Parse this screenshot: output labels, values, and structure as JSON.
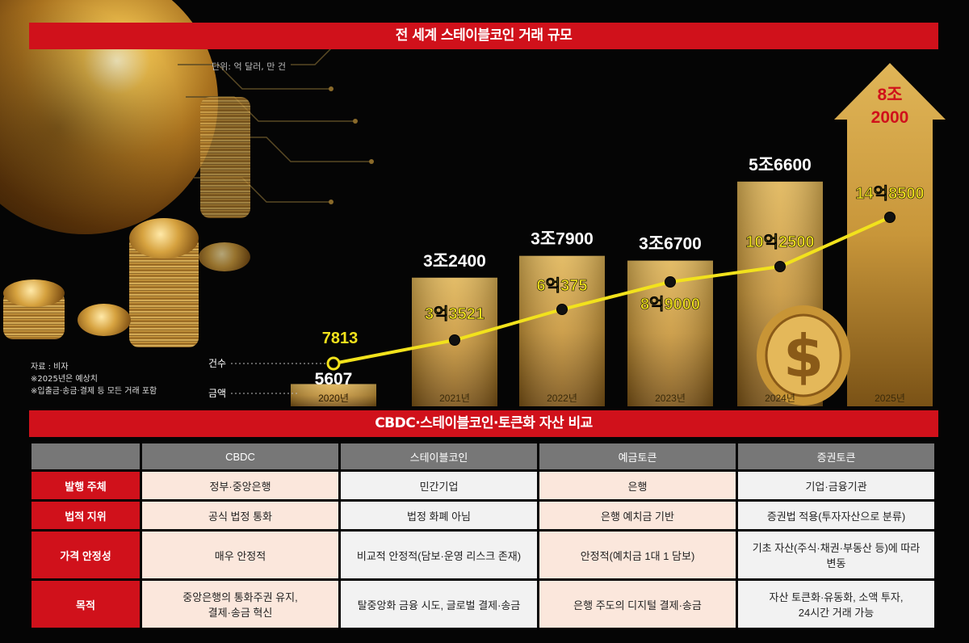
{
  "chart_title": "전 세계 스테이블코인 거래 규모",
  "unit_label": "단위: 억 달러, 만 건",
  "notes": [
    "자료 : 비자",
    "※2025년은 예상치",
    "※입출금·송금·결제 등 모든 거래 포함"
  ],
  "chart_data": {
    "type": "bar",
    "categories": [
      "2020년",
      "2021년",
      "2022년",
      "2023년",
      "2024년",
      "2025년"
    ],
    "series": [
      {
        "name": "금액",
        "type": "bar",
        "values": [
          5607,
          32400,
          37900,
          36700,
          56600,
          82000
        ],
        "labels": [
          "5607",
          "3조2400",
          "3조7900",
          "3조6700",
          "5조6600",
          "8조\n2000"
        ]
      },
      {
        "name": "건수",
        "type": "line",
        "values": [
          7813,
          33521,
          60375,
          89000,
          102500,
          148500
        ],
        "labels": [
          "7813",
          "3억3521",
          "6억375",
          "8억9000",
          "10억2500",
          "14억8500"
        ]
      }
    ],
    "projected_category": "2025년",
    "colors": {
      "bar": "#d9a94a",
      "line": "#f2e21c",
      "highlight": "#d0111b"
    }
  },
  "comparison": {
    "title": "CBDC·스테이블코인·토큰화 자산 비교",
    "columns": [
      "CBDC",
      "스테이블코인",
      "예금토큰",
      "증권토큰"
    ],
    "rows": [
      {
        "label": "발행 주체",
        "cells": [
          "정부·중앙은행",
          "민간기업",
          "은행",
          "기업·금융기관"
        ]
      },
      {
        "label": "법적 지위",
        "cells": [
          "공식 법정 통화",
          "법정 화폐 아님",
          "은행 예치금 기반",
          "증권법 적용(투자자산으로 분류)"
        ]
      },
      {
        "label": "가격 안정성",
        "cells": [
          "매우 안정적",
          "비교적 안정적(담보·운영 리스크 존재)",
          "안정적(예치금 1대 1 담보)",
          "기초 자산(주식·채권·부동산 등)에 따라\n변동"
        ]
      },
      {
        "label": "목적",
        "cells": [
          "중앙은행의 통화주권 유지,\n결제·송금 혁신",
          "탈중앙화 금융 시도, 글로벌 결제·송금",
          "은행 주도의 디지털 결제·송금",
          "자산 토큰화·유동화, 소액 투자,\n24시간 거래 가능"
        ]
      }
    ]
  }
}
